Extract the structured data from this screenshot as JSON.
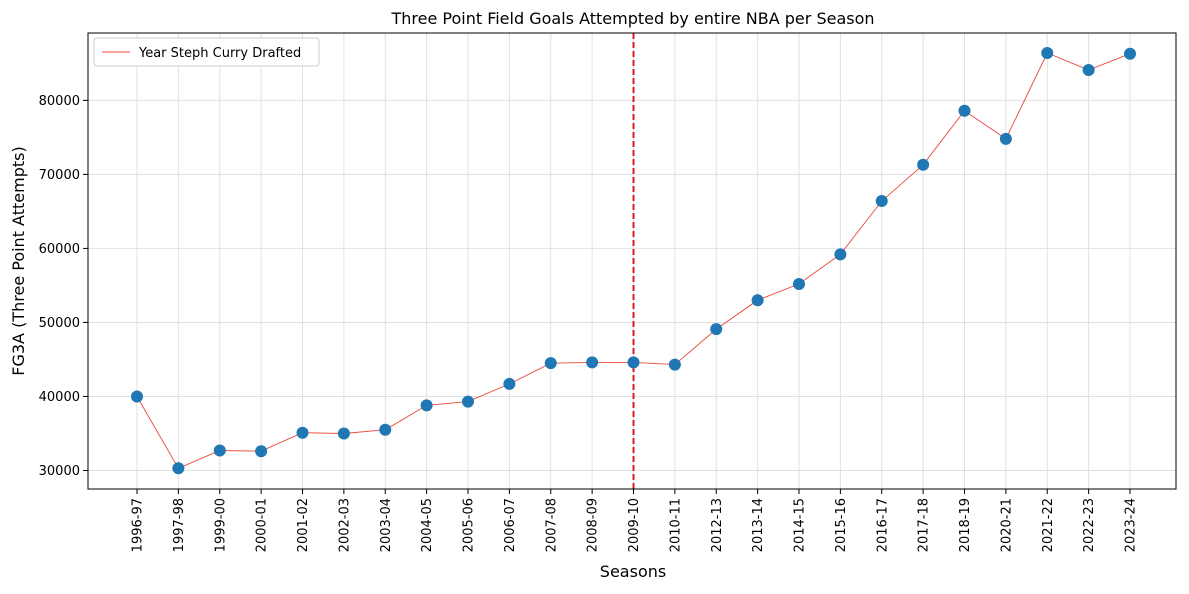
{
  "chart_data": {
    "type": "line",
    "title": "Three Point Field Goals Attempted by entire NBA per Season",
    "xlabel": "Seasons",
    "ylabel": "FG3A (Three Point Attempts)",
    "categories": [
      "1996-97",
      "1997-98",
      "1999-00",
      "2000-01",
      "2001-02",
      "2002-03",
      "2003-04",
      "2004-05",
      "2005-06",
      "2006-07",
      "2007-08",
      "2008-09",
      "2009-10",
      "2010-11",
      "2012-13",
      "2013-14",
      "2014-15",
      "2015-16",
      "2016-17",
      "2017-18",
      "2018-19",
      "2020-21",
      "2021-22",
      "2022-23",
      "2023-24"
    ],
    "series": [
      {
        "name": "",
        "values": [
          40000,
          30300,
          32700,
          32600,
          35100,
          35000,
          35500,
          38800,
          39300,
          41700,
          44500,
          44600,
          44600,
          44300,
          49100,
          53000,
          55200,
          59200,
          66400,
          71300,
          78600,
          74800,
          86400,
          84100,
          86300
        ]
      }
    ],
    "yticks": [
      30000,
      40000,
      50000,
      60000,
      70000,
      80000
    ],
    "ylim": [
      27500,
      89100
    ],
    "vline": {
      "category": "2009-10",
      "color": "#e31a1c",
      "style": "dashed"
    },
    "legend": {
      "label": "Year Steph Curry Drafted",
      "placement": "top-left"
    },
    "grid": true,
    "colors": {
      "line": "#e8483b",
      "marker": "#1f77b4",
      "vline": "#e31a1c",
      "grid": "#e0e0e0"
    }
  }
}
